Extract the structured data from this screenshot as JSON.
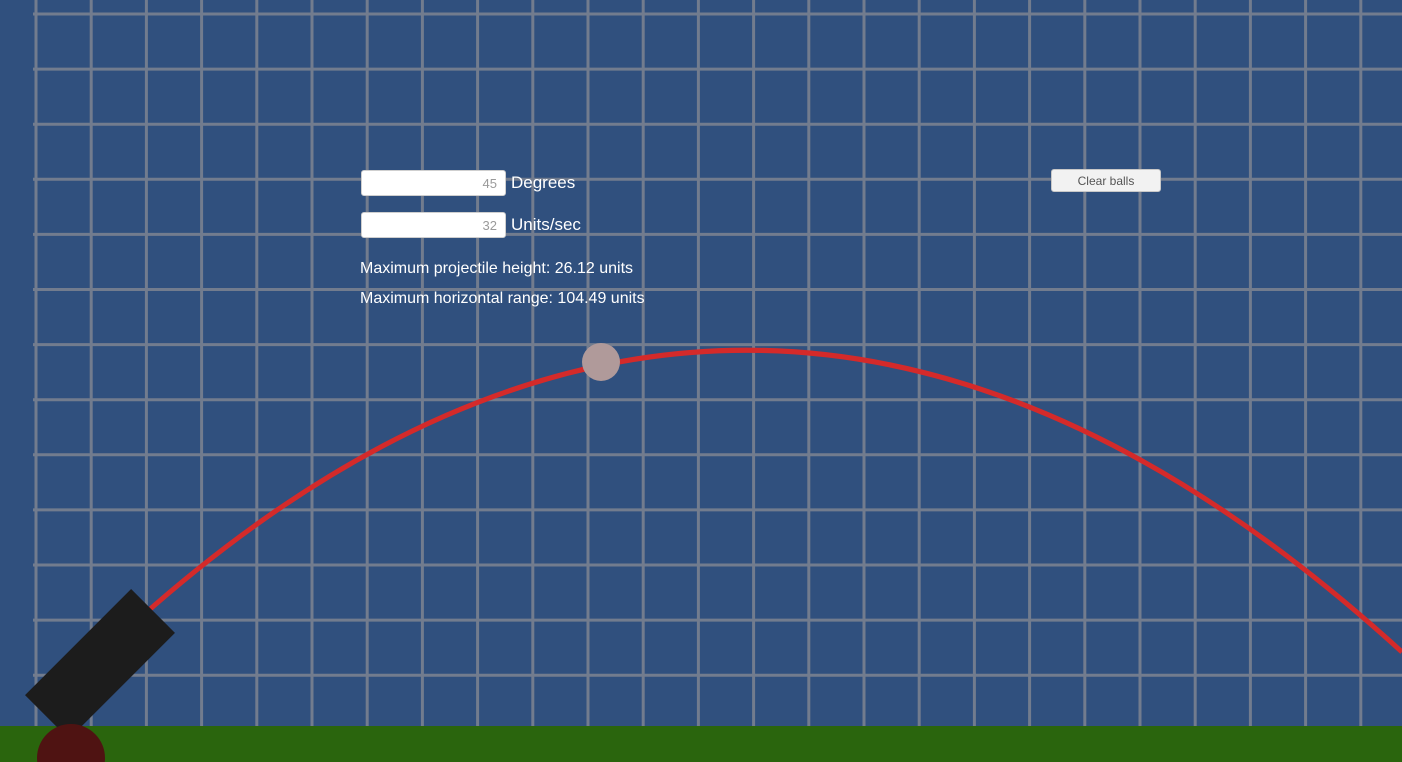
{
  "controls": {
    "angle": {
      "value": "45",
      "unit": "Degrees"
    },
    "speed": {
      "value": "32",
      "unit": "Units/sec"
    },
    "clear_label": "Clear balls"
  },
  "stats": {
    "max_height_text": "Maximum projectile height: 26.12 units",
    "max_range_text": "Maximum horizontal range: 104.49 units"
  },
  "colors": {
    "sky": "#30507e",
    "grid_line": "#727c8e",
    "ground": "#2a650d",
    "trajectory": "#d42a2a",
    "cannon_barrel": "#1c1c1c",
    "cannon_base": "#4f1312",
    "ball": "#b09a9a",
    "left_strip": "#30507e"
  }
}
